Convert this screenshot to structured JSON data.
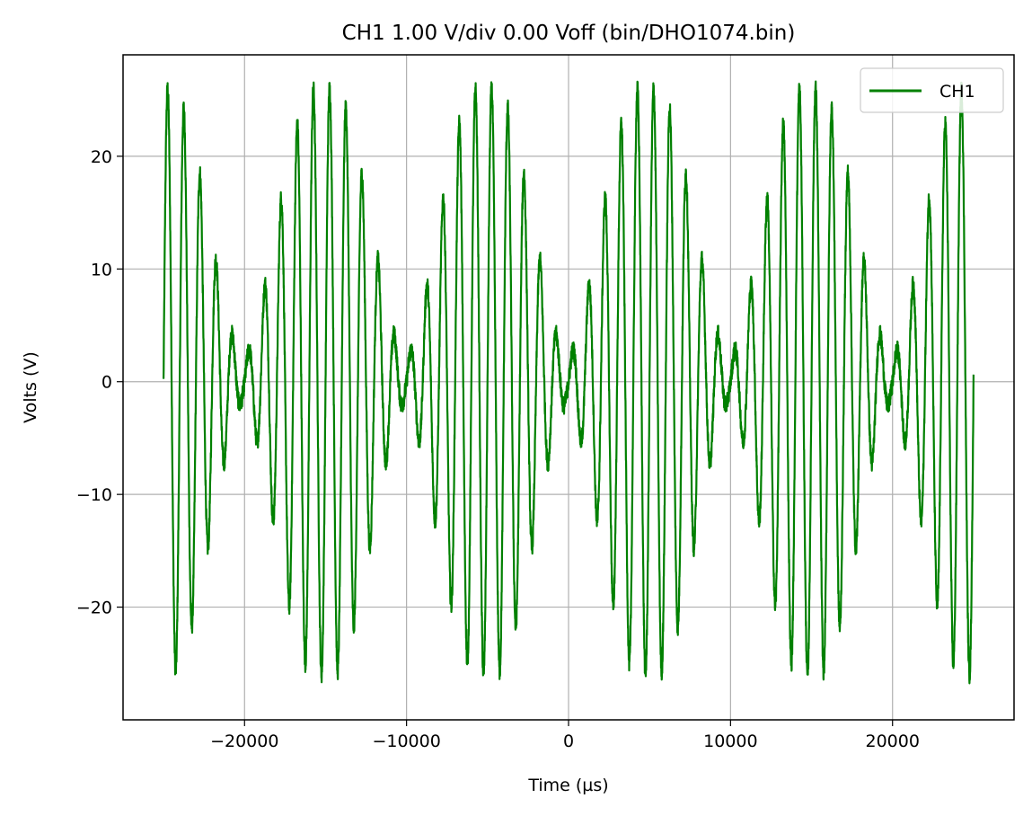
{
  "chart_data": {
    "type": "line",
    "title": "CH1  1.00 V/div  0.00 Voff  (bin/DHO1074.bin)",
    "xlabel": "Time (µs)",
    "ylabel": "Volts (V)",
    "xlim": [
      -27500,
      27500
    ],
    "ylim": [
      -30,
      29
    ],
    "xticks": [
      -20000,
      -10000,
      0,
      10000,
      20000
    ],
    "xtick_labels": [
      "−20000",
      "−10000",
      "0",
      "10000",
      "20000"
    ],
    "yticks": [
      -20,
      -10,
      0,
      10,
      20
    ],
    "ytick_labels": [
      "−20",
      "−10",
      "0",
      "10",
      "20"
    ],
    "grid": true,
    "legend_position": "top-right",
    "series": [
      {
        "name": "CH1",
        "color": "#008000",
        "x_start": -25000,
        "x_end": 25000,
        "carrier_period": 1000,
        "beat_period": 10000,
        "beat_peak_times": [
          -24600,
          -14850,
          -5100,
          4850,
          14600,
          24400
        ],
        "amplitude_peak": 26,
        "amplitude_floor": 1,
        "noise": 0.8
      }
    ]
  }
}
